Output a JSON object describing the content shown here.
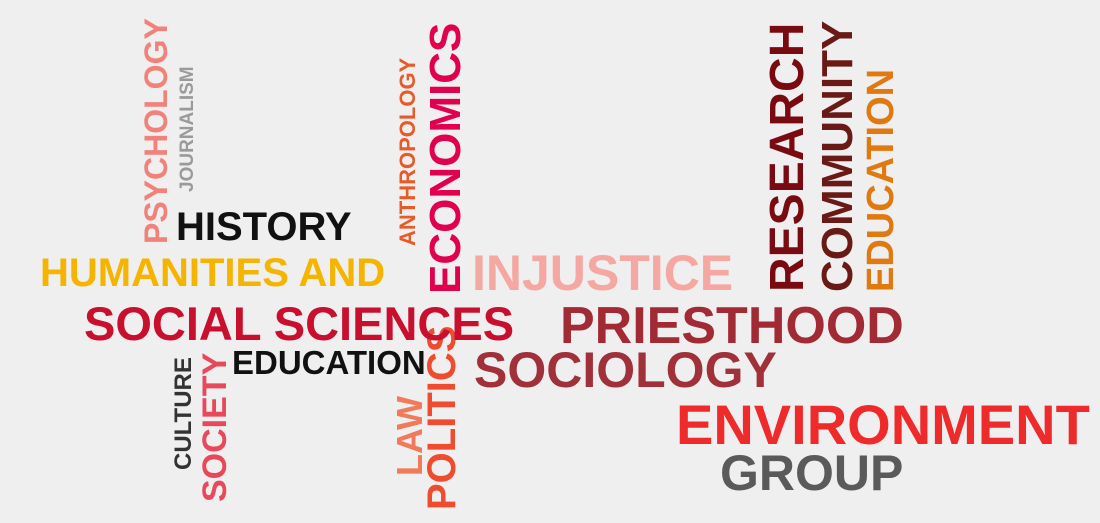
{
  "words": {
    "psychology": {
      "text": "PSYCHOLOGY",
      "color": "#f0827a"
    },
    "journalism": {
      "text": "JOURNALISM",
      "color": "#9a9a9a"
    },
    "history": {
      "text": "HISTORY",
      "color": "#111111"
    },
    "humanities_and": {
      "text": "HUMANITIES AND",
      "color": "#f5b400"
    },
    "social_sciences": {
      "text": "SOCIAL SCIENCES",
      "color": "#c8102e"
    },
    "education_h": {
      "text": "EDUCATION",
      "color": "#111111"
    },
    "culture": {
      "text": "CULTURE",
      "color": "#333333"
    },
    "society": {
      "text": "SOCIETY",
      "color": "#e8485a"
    },
    "anthropology": {
      "text": "ANTHROPOLOGY",
      "color": "#e85a28"
    },
    "economics": {
      "text": "ECONOMICS",
      "color": "#e0004e"
    },
    "law": {
      "text": "LAW",
      "color": "#f07a5a"
    },
    "politics": {
      "text": "POLITICS",
      "color": "#ef4b2e"
    },
    "injustice": {
      "text": "INJUSTICE",
      "color": "#f5a7a2"
    },
    "priesthood": {
      "text": "PRIESTHOOD",
      "color": "#a22a34"
    },
    "sociology": {
      "text": "SOCIOLOGY",
      "color": "#a0303a"
    },
    "environment": {
      "text": "ENVIRONMENT",
      "color": "#ef2a2a"
    },
    "group": {
      "text": "GROUP",
      "color": "#5a5a5a"
    },
    "research": {
      "text": "RESEARCH",
      "color": "#7a0a12"
    },
    "community": {
      "text": "COMMUNITY",
      "color": "#6a1a16"
    },
    "education_v": {
      "text": "EDUCATION",
      "color": "#e07a10"
    }
  }
}
